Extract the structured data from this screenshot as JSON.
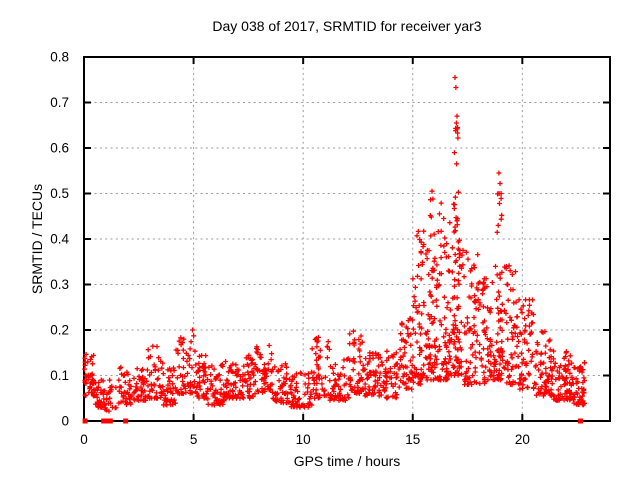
{
  "chart_data": {
    "type": "scatter",
    "title": "Day 038 of 2017, SRMTID for receiver yar3",
    "xlabel": "GPS time / hours",
    "ylabel": "SRMTID / TECUs",
    "xlim": [
      0,
      24
    ],
    "ylim": [
      0,
      0.8
    ],
    "xticks": [
      0,
      5,
      10,
      15,
      20
    ],
    "xtick_labels": [
      "0",
      "5",
      "10",
      "15",
      "20"
    ],
    "yticks": [
      0,
      0.1,
      0.2,
      0.3,
      0.4,
      0.5,
      0.6,
      0.7,
      0.8
    ],
    "ytick_labels": [
      "0",
      "0.1",
      "0.2",
      "0.3",
      "0.4",
      "0.5",
      "0.6",
      "0.7",
      "0.8"
    ],
    "grid": {
      "show": true,
      "style": "dashed",
      "color": "#9b9b9b"
    },
    "legend": "none",
    "marker": {
      "shape": "plus",
      "color": "#ff0000",
      "size": 5,
      "stroke_width": 1.3
    },
    "colors": {
      "background": "#ffffff",
      "border": "#000000",
      "text": "#000000",
      "points": "#ff0000"
    },
    "series_description": "Single dense scatter series of SRMTID values vs GPS time; quiet band ~0.03-0.17 TECUs from 0-14 h, strong activity peak near 17 h reaching 0.76, secondary peak near 19 h reaching 0.55, decay to ~0.05-0.15 by 23 h; isolated zero-value points near 0.05, 0.9-1.2, 1.9 and 22.65 h.",
    "envelope_bins_format": [
      "x_start_hours",
      "x_end_hours",
      "y_min_TECUs",
      "y_max_TECUs",
      "point_count"
    ],
    "envelope_bins": [
      [
        0.0,
        0.45,
        0.055,
        0.155,
        45
      ],
      [
        0.45,
        0.95,
        0.03,
        0.105,
        35
      ],
      [
        0.95,
        1.55,
        0.02,
        0.09,
        22
      ],
      [
        1.55,
        2.3,
        0.035,
        0.12,
        40
      ],
      [
        2.3,
        2.9,
        0.045,
        0.125,
        40
      ],
      [
        2.9,
        3.6,
        0.05,
        0.17,
        45
      ],
      [
        3.6,
        4.2,
        0.035,
        0.12,
        40
      ],
      [
        4.2,
        5.1,
        0.06,
        0.19,
        55
      ],
      [
        5.1,
        5.6,
        0.05,
        0.145,
        40
      ],
      [
        5.6,
        6.4,
        0.035,
        0.125,
        55
      ],
      [
        6.4,
        7.2,
        0.05,
        0.135,
        55
      ],
      [
        7.2,
        7.8,
        0.05,
        0.145,
        45
      ],
      [
        7.8,
        8.6,
        0.06,
        0.17,
        55
      ],
      [
        8.6,
        9.4,
        0.04,
        0.13,
        50
      ],
      [
        9.4,
        10.4,
        0.03,
        0.11,
        60
      ],
      [
        10.4,
        11.2,
        0.05,
        0.185,
        50
      ],
      [
        11.2,
        12.1,
        0.045,
        0.14,
        55
      ],
      [
        12.1,
        12.8,
        0.06,
        0.2,
        50
      ],
      [
        12.8,
        13.6,
        0.055,
        0.15,
        55
      ],
      [
        13.6,
        14.4,
        0.05,
        0.16,
        50
      ],
      [
        14.4,
        15.0,
        0.07,
        0.23,
        50
      ],
      [
        15.0,
        15.5,
        0.08,
        0.42,
        55
      ],
      [
        15.5,
        16.1,
        0.09,
        0.42,
        60
      ],
      [
        15.8,
        16.0,
        0.12,
        0.5,
        12
      ],
      [
        16.1,
        16.6,
        0.09,
        0.5,
        60
      ],
      [
        16.6,
        17.3,
        0.1,
        0.45,
        70
      ],
      [
        16.85,
        17.15,
        0.12,
        0.66,
        35
      ],
      [
        17.3,
        18.0,
        0.08,
        0.38,
        65
      ],
      [
        18.0,
        18.6,
        0.08,
        0.33,
        55
      ],
      [
        18.6,
        19.2,
        0.09,
        0.35,
        40
      ],
      [
        18.85,
        19.1,
        0.14,
        0.555,
        25
      ],
      [
        19.2,
        19.8,
        0.08,
        0.35,
        50
      ],
      [
        19.8,
        20.6,
        0.07,
        0.28,
        60
      ],
      [
        20.6,
        21.4,
        0.055,
        0.2,
        65
      ],
      [
        21.4,
        22.2,
        0.045,
        0.16,
        70
      ],
      [
        22.2,
        22.85,
        0.035,
        0.13,
        55
      ]
    ],
    "outlier_points": [
      [
        4.95,
        0.2
      ],
      [
        16.93,
        0.755
      ],
      [
        16.97,
        0.733
      ],
      [
        17.02,
        0.67
      ],
      [
        16.99,
        0.655
      ],
      [
        17.04,
        0.645
      ],
      [
        16.96,
        0.638
      ],
      [
        17.06,
        0.622
      ],
      [
        16.9,
        0.59
      ],
      [
        17.0,
        0.565
      ],
      [
        15.88,
        0.505
      ],
      [
        15.92,
        0.488
      ],
      [
        18.93,
        0.545
      ],
      [
        18.98,
        0.522
      ],
      [
        19.03,
        0.5
      ],
      [
        18.96,
        0.478
      ],
      [
        19.06,
        0.452
      ],
      [
        18.9,
        0.43
      ]
    ],
    "zero_value_points_hours": [
      0.05,
      0.9,
      1.05,
      1.2,
      1.9,
      22.65
    ],
    "density_skew": 1.7,
    "random_seed": 20170381
  }
}
